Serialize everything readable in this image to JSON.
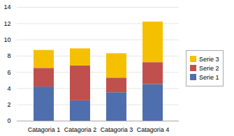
{
  "chart_data": {
    "type": "bar",
    "stacked": true,
    "categories": [
      "Catagoria 1",
      "Catagoria 2",
      "Catagoria 3",
      "Catagoria 4"
    ],
    "series": [
      {
        "name": "Serie 1",
        "color": "#4F6EAD",
        "values": [
          4.2,
          2.5,
          3.5,
          4.5
        ]
      },
      {
        "name": "Serie 2",
        "color": "#C0504D",
        "values": [
          2.3,
          4.3,
          1.8,
          2.7
        ]
      },
      {
        "name": "Serie 3",
        "color": "#F5C000",
        "values": [
          2.2,
          2.1,
          3.0,
          5.0
        ]
      }
    ],
    "ylim": [
      0,
      14
    ],
    "yticks": [
      0,
      2,
      4,
      6,
      8,
      10,
      12,
      14
    ],
    "grid": true,
    "legend": "right"
  }
}
